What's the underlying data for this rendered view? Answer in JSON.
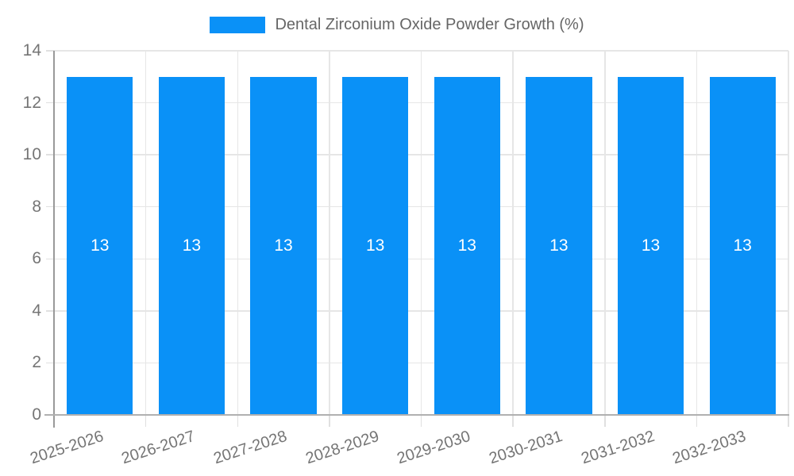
{
  "chart_data": {
    "type": "bar",
    "legend_label": "Dental Zirconium Oxide Powder Growth (%)",
    "legend_position": "top",
    "categories": [
      "2025-2026",
      "2026-2027",
      "2027-2028",
      "2028-2029",
      "2029-2030",
      "2030-2031",
      "2031-2032",
      "2032-2033"
    ],
    "series": [
      {
        "name": "Dental Zirconium Oxide Powder Growth (%)",
        "values": [
          13,
          13,
          13,
          13,
          13,
          13,
          13,
          13
        ]
      }
    ],
    "value_labels": [
      "13",
      "13",
      "13",
      "13",
      "13",
      "13",
      "13",
      "13"
    ],
    "ylim": [
      0,
      14
    ],
    "yticks": [
      0,
      2,
      4,
      6,
      8,
      10,
      12,
      14
    ],
    "grid": true,
    "colors": {
      "bar": "#0A91F7",
      "bar_value_label": "#FFFFFF",
      "axis_label": "#757575",
      "legend_text": "#666666",
      "gridline": "#E6E6E6",
      "tick": "#E0E0E0",
      "y_axis_line": "#999999",
      "x_axis_line": "#B0B0B0",
      "background": "#FFFFFF"
    }
  }
}
